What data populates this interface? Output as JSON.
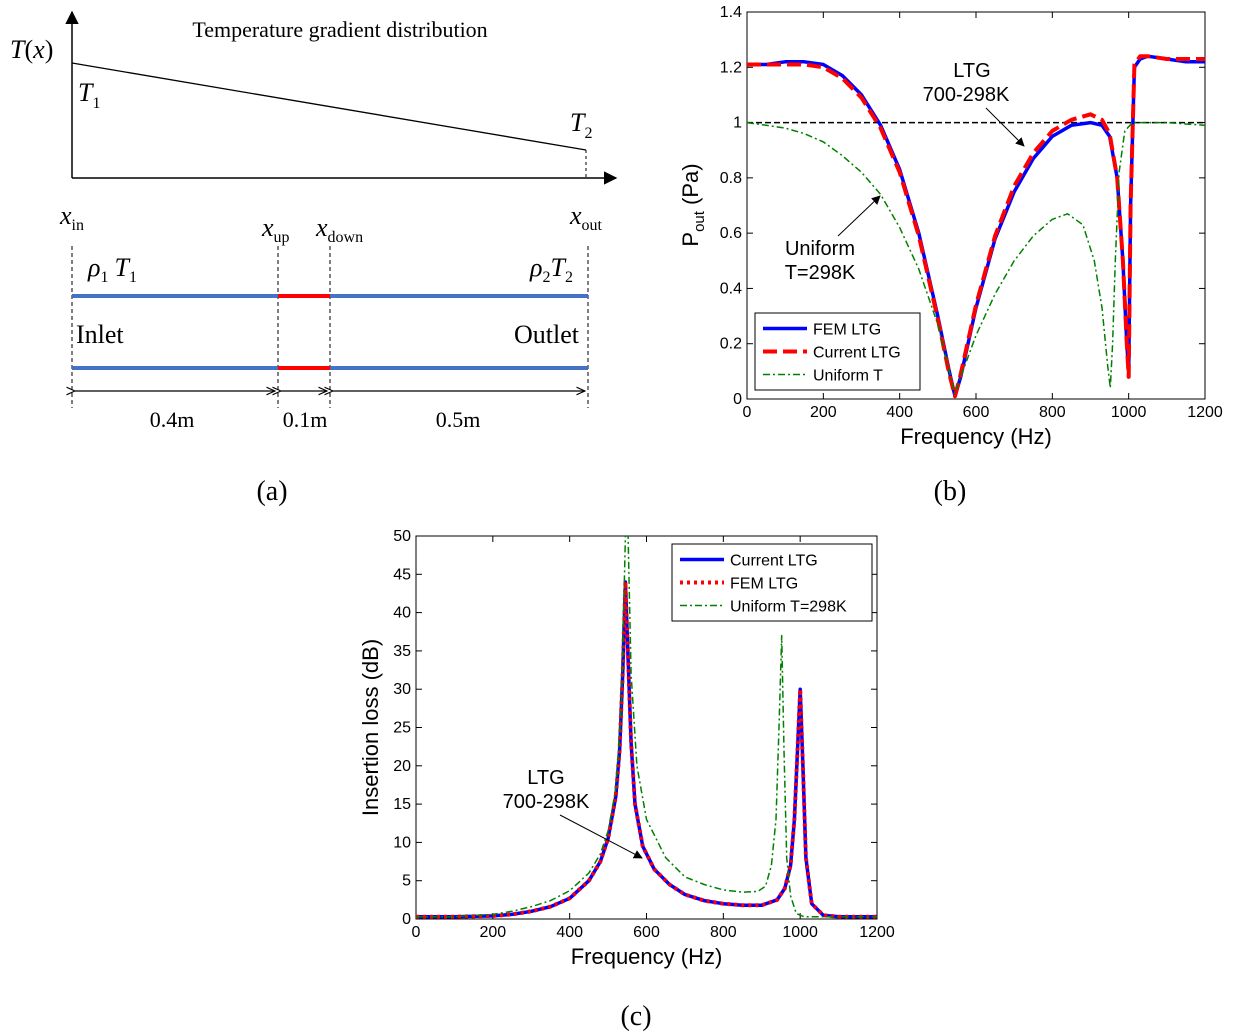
{
  "panel_a": {
    "title": "Temperature gradient distribution",
    "y_axis": {
      "main": "T",
      "paren": "(",
      "var": "x",
      "close": ")"
    },
    "t1": {
      "main": "T",
      "sub": "1"
    },
    "t2": {
      "main": "T",
      "sub": "2"
    },
    "x_in": {
      "main": "x",
      "sub": "in"
    },
    "x_up": {
      "main": "x",
      "sub": "up"
    },
    "x_down": {
      "main": "x",
      "sub": "down"
    },
    "x_out": {
      "main": "x",
      "sub": "out"
    },
    "rho1": {
      "rho": "ρ",
      "rsub": "1",
      "t": "T",
      "tsub": "1"
    },
    "rho2": {
      "rho": "ρ",
      "rsub": "2",
      "t": "T",
      "tsub": "2"
    },
    "inlet": "Inlet",
    "outlet": "Outlet",
    "dim1": "0.4m",
    "dim2": "0.1m",
    "dim3": "0.5m",
    "caption": "(a)"
  },
  "panel_b": {
    "caption": "(b)",
    "ylabel": {
      "main": "P",
      "sub": "out",
      "unit": " (Pa)"
    },
    "annotation_ltg": [
      "LTG",
      "700-298K"
    ],
    "annotation_uniform": [
      "Uniform",
      "T=298K"
    ]
  },
  "panel_c": {
    "caption": "(c)",
    "annotation_ltg": [
      "LTG",
      "700-298K"
    ]
  },
  "colors": {
    "blue": "#0000ff",
    "red": "#ff0000",
    "green": "#008000",
    "black": "#000000"
  },
  "chart_data": [
    {
      "type": "line",
      "panel": "b",
      "xlabel": "Frequency (Hz)",
      "ylabel": "Pout (Pa)",
      "xlim": [
        0,
        1200
      ],
      "ylim": [
        0,
        1.4
      ],
      "xticks": [
        "0",
        "200",
        "400",
        "600",
        "800",
        "1000",
        "1200"
      ],
      "yticks": [
        "0",
        "0.2",
        "0.4",
        "0.6",
        "0.8",
        "1",
        "1.2",
        "1.4"
      ],
      "legend_position": "bottom-left",
      "reference_line_y": 1,
      "series": [
        {
          "name": "FEM LTG",
          "color": "#0000ff",
          "style": "solid",
          "x": [
            0,
            50,
            100,
            150,
            200,
            250,
            300,
            350,
            400,
            450,
            500,
            530,
            545,
            560,
            600,
            650,
            700,
            750,
            800,
            850,
            900,
            930,
            950,
            970,
            985,
            995,
            1000,
            1005,
            1015,
            1030,
            1050,
            1100,
            1150,
            1200
          ],
          "y": [
            1.21,
            1.21,
            1.22,
            1.22,
            1.21,
            1.17,
            1.1,
            0.99,
            0.83,
            0.6,
            0.3,
            0.1,
            0.01,
            0.08,
            0.33,
            0.58,
            0.75,
            0.87,
            0.95,
            0.99,
            1.0,
            0.99,
            0.95,
            0.8,
            0.5,
            0.2,
            0.1,
            0.7,
            1.2,
            1.23,
            1.24,
            1.23,
            1.22,
            1.22
          ]
        },
        {
          "name": "Current LTG",
          "color": "#ff0000",
          "style": "dashed",
          "x": [
            0,
            50,
            100,
            150,
            200,
            250,
            300,
            350,
            400,
            450,
            500,
            530,
            545,
            560,
            600,
            650,
            700,
            750,
            800,
            850,
            900,
            930,
            950,
            970,
            985,
            995,
            1000,
            1005,
            1015,
            1030,
            1050,
            1100,
            1150,
            1200
          ],
          "y": [
            1.21,
            1.21,
            1.21,
            1.21,
            1.2,
            1.16,
            1.09,
            0.98,
            0.82,
            0.59,
            0.29,
            0.09,
            0.01,
            0.09,
            0.34,
            0.59,
            0.77,
            0.89,
            0.97,
            1.01,
            1.03,
            1.01,
            0.96,
            0.8,
            0.5,
            0.2,
            0.08,
            0.7,
            1.21,
            1.24,
            1.24,
            1.23,
            1.23,
            1.23
          ]
        },
        {
          "name": "Uniform T",
          "color": "#008000",
          "style": "dashdot",
          "x": [
            0,
            50,
            100,
            150,
            200,
            250,
            300,
            350,
            400,
            450,
            500,
            530,
            545,
            560,
            600,
            650,
            700,
            750,
            800,
            840,
            880,
            910,
            930,
            945,
            952,
            958,
            965,
            975,
            990,
            1010,
            1050,
            1100,
            1200
          ],
          "y": [
            1.0,
            0.99,
            0.98,
            0.96,
            0.93,
            0.88,
            0.82,
            0.74,
            0.62,
            0.47,
            0.27,
            0.1,
            0.02,
            0.08,
            0.23,
            0.38,
            0.5,
            0.59,
            0.65,
            0.67,
            0.63,
            0.5,
            0.33,
            0.12,
            0.04,
            0.2,
            0.5,
            0.82,
            0.97,
            1.0,
            1.0,
            1.0,
            0.99
          ]
        }
      ]
    },
    {
      "type": "line",
      "panel": "c",
      "xlabel": "Frequency (Hz)",
      "ylabel": "Insertion loss (dB)",
      "xlim": [
        0,
        1200
      ],
      "ylim": [
        0,
        50
      ],
      "xticks": [
        "0",
        "200",
        "400",
        "600",
        "800",
        "1000",
        "1200"
      ],
      "yticks": [
        "0",
        "5",
        "10",
        "15",
        "20",
        "25",
        "30",
        "35",
        "40",
        "45",
        "50"
      ],
      "legend_position": "top-right",
      "series": [
        {
          "name": "Current LTG",
          "color": "#0000ff",
          "style": "solid",
          "x": [
            0,
            100,
            200,
            250,
            300,
            350,
            400,
            450,
            480,
            500,
            520,
            530,
            538,
            545,
            552,
            560,
            570,
            590,
            620,
            660,
            700,
            750,
            800,
            850,
            900,
            940,
            960,
            975,
            985,
            993,
            1000,
            1007,
            1015,
            1030,
            1060,
            1100,
            1200
          ],
          "y": [
            0.3,
            0.3,
            0.4,
            0.6,
            1.0,
            1.6,
            2.7,
            5.0,
            7.5,
            10.5,
            16.0,
            22.0,
            32.0,
            44.0,
            34.0,
            23.0,
            15.0,
            9.5,
            6.5,
            4.5,
            3.2,
            2.4,
            2.0,
            1.8,
            1.8,
            2.5,
            4.0,
            7.0,
            13.0,
            22.0,
            30.0,
            20.0,
            8.0,
            2.0,
            0.5,
            0.3,
            0.3
          ]
        },
        {
          "name": "FEM LTG",
          "color": "#ff0000",
          "style": "dotted",
          "x": [
            0,
            100,
            200,
            250,
            300,
            350,
            400,
            450,
            480,
            500,
            520,
            530,
            538,
            545,
            552,
            560,
            570,
            590,
            620,
            660,
            700,
            750,
            800,
            850,
            900,
            940,
            960,
            975,
            985,
            993,
            1000,
            1007,
            1015,
            1030,
            1060,
            1100,
            1200
          ],
          "y": [
            0.3,
            0.3,
            0.4,
            0.6,
            1.0,
            1.6,
            2.7,
            5.0,
            7.5,
            10.5,
            16.0,
            22.0,
            32.0,
            44.0,
            34.0,
            23.0,
            15.0,
            9.5,
            6.5,
            4.5,
            3.2,
            2.4,
            2.0,
            1.8,
            1.8,
            2.5,
            4.0,
            7.0,
            13.0,
            22.0,
            30.0,
            20.0,
            8.0,
            2.0,
            0.5,
            0.3,
            0.3
          ]
        },
        {
          "name": "Uniform T=298K",
          "color": "#008000",
          "style": "dashdot",
          "x": [
            0,
            100,
            200,
            250,
            300,
            350,
            400,
            450,
            480,
            500,
            520,
            535,
            545,
            552,
            560,
            575,
            600,
            650,
            700,
            750,
            800,
            850,
            890,
            910,
            925,
            937,
            945,
            952,
            958,
            965,
            975,
            990,
            1010,
            1050,
            1100,
            1200
          ],
          "y": [
            0.3,
            0.3,
            0.6,
            1.0,
            1.6,
            2.4,
            3.7,
            6.0,
            8.5,
            11.5,
            17.0,
            28.0,
            50.0,
            50.0,
            32.0,
            20.0,
            13.0,
            8.0,
            5.5,
            4.5,
            3.8,
            3.5,
            3.6,
            4.3,
            7.0,
            13.0,
            25.0,
            37.0,
            22.0,
            8.0,
            3.0,
            0.7,
            0.3,
            0.3,
            0.3,
            0.3
          ]
        }
      ]
    }
  ]
}
